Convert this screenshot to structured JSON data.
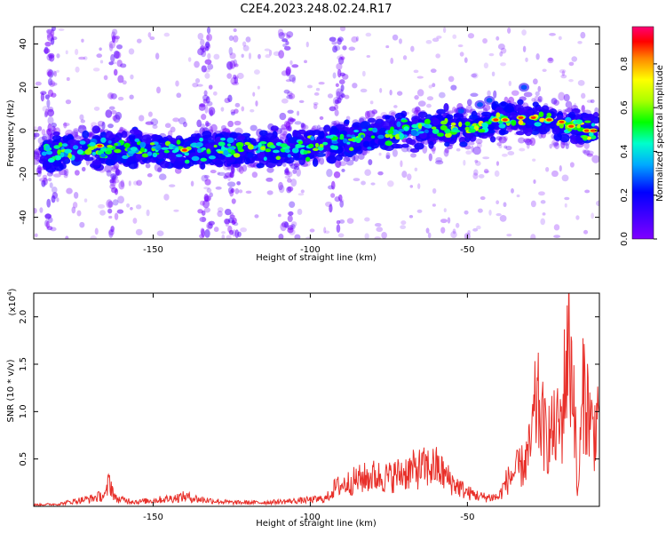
{
  "title": "C2E4.2023.248.02.24.R17",
  "spectrogram": {
    "ylabel": "Frequency (Hz)",
    "xlabel": "Height of straight line (km)",
    "xlim": [
      -188,
      -8
    ],
    "ylim": [
      -50,
      48
    ],
    "xticks": [
      "-150",
      "-100",
      "-50"
    ],
    "xtick_values": [
      -150,
      -100,
      -50
    ],
    "yticks": [
      "-40",
      "-20",
      "0",
      "20",
      "40"
    ],
    "ytick_values": [
      -40,
      -20,
      0,
      20,
      40
    ],
    "colorbar": {
      "label": "Normalized spectral amplitude",
      "ticks": [
        "0.0",
        "0.2",
        "0.4",
        "0.6",
        "0.8"
      ],
      "tick_values": [
        0.0,
        0.2,
        0.4,
        0.6,
        0.8
      ],
      "range": [
        0,
        0.97
      ]
    }
  },
  "snr": {
    "ylabel": "SNR (10 * v/v)",
    "scale_label": "(x10",
    "scale_exp": "4",
    "scale_close": ")",
    "xlabel": "Height of straight line (km)",
    "xticks": [
      "-150",
      "-100",
      "-50"
    ],
    "xtick_values": [
      -150,
      -100,
      -50
    ],
    "yticks": [
      "0.5",
      "1.0",
      "1.5",
      "2.0"
    ],
    "ytick_values": [
      0.5,
      1.0,
      1.5,
      2.0
    ],
    "xlim": [
      -188,
      -8
    ],
    "ylim": [
      0,
      2.25
    ],
    "line_color": "#e8302a"
  },
  "chart_data": [
    {
      "type": "heatmap",
      "title": "C2E4.2023.248.02.24.R17",
      "xlabel": "Height of straight line (km)",
      "ylabel": "Frequency (Hz)",
      "xlim": [
        -188,
        -8
      ],
      "ylim": [
        -50,
        48
      ],
      "colorbar_label": "Normalized spectral amplitude",
      "ridge": {
        "x": [
          -185,
          -170,
          -155,
          -140,
          -125,
          -110,
          -100,
          -90,
          -80,
          -70,
          -60,
          -50,
          -40,
          -30,
          -20,
          -10
        ],
        "y": [
          -10,
          -9,
          -8,
          -9,
          -9,
          -8,
          -7,
          -5,
          -2,
          0,
          1,
          2,
          5,
          6,
          3,
          0
        ]
      }
    },
    {
      "type": "line",
      "xlabel": "Height of straight line (km)",
      "ylabel": "SNR (10 * v/v)",
      "xlim": [
        -188,
        -8
      ],
      "ylim": [
        0,
        2.25
      ],
      "series": [
        {
          "x": [
            -188,
            -180,
            -175,
            -170,
            -165,
            -164,
            -162,
            -155,
            -145,
            -140,
            -135,
            -125,
            -115,
            -105,
            -95,
            -92,
            -85,
            -80,
            -75,
            -70,
            -65,
            -60,
            -55,
            -50,
            -45,
            -40,
            -38,
            -35,
            -32,
            -30,
            -28,
            -25,
            -22,
            -20,
            -18,
            -16,
            -15,
            -13,
            -10,
            -8
          ],
          "y": [
            0.02,
            0.03,
            0.07,
            0.1,
            0.15,
            0.35,
            0.1,
            0.06,
            0.1,
            0.13,
            0.09,
            0.05,
            0.05,
            0.07,
            0.1,
            0.25,
            0.35,
            0.4,
            0.38,
            0.45,
            0.5,
            0.52,
            0.32,
            0.18,
            0.12,
            0.12,
            0.3,
            0.45,
            0.55,
            0.75,
            1.4,
            0.9,
            1.0,
            1.1,
            2.22,
            1.5,
            0.08,
            1.6,
            0.95,
            1.3
          ]
        }
      ]
    }
  ]
}
